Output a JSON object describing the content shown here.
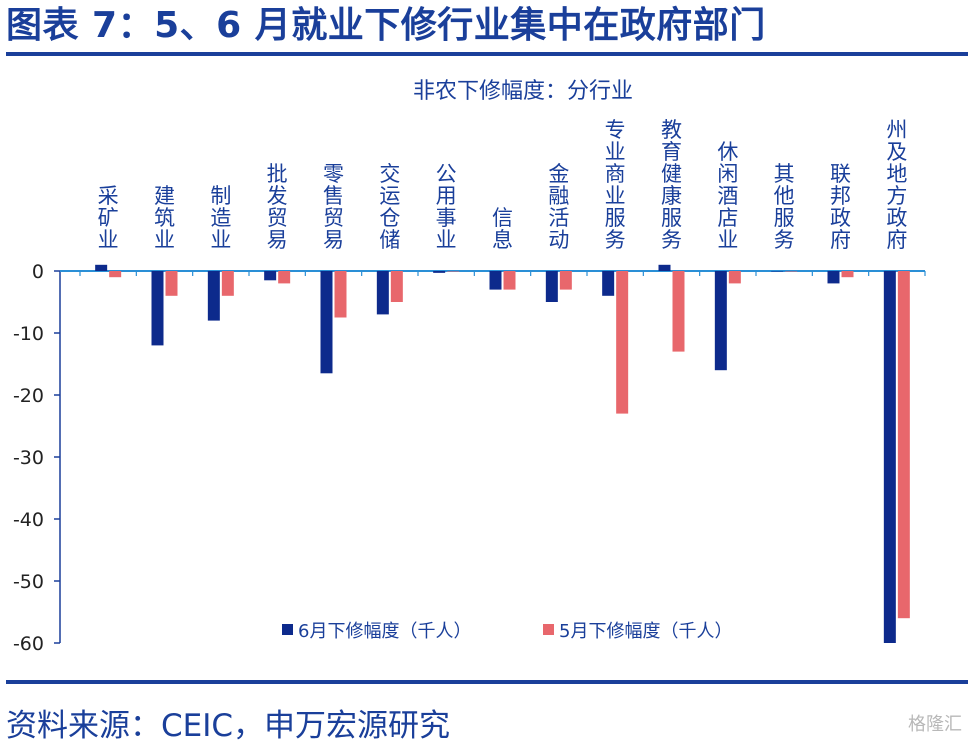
{
  "header": {
    "title": "图表 7：5、6 月就业下修行业集中在政府部门"
  },
  "footer": {
    "source": "资料来源：CEIC，申万宏源研究",
    "watermark": "格隆汇"
  },
  "chart_data": {
    "type": "bar",
    "title": "非农下修幅度：分行业",
    "xlabel": "",
    "ylabel": "",
    "ylim": [
      -60,
      0
    ],
    "yticks": [
      0,
      -10,
      -20,
      -30,
      -40,
      -50,
      -60
    ],
    "grid": false,
    "legend_position": "bottom-center",
    "categories": [
      "采矿业",
      "建筑业",
      "制造业",
      "批发贸易",
      "零售贸易",
      "交运仓储",
      "公用事业",
      "信息",
      "金融活动",
      "专业商业服务",
      "教育健康服务",
      "休闲酒店业",
      "其他服务",
      "联邦政府",
      "州及地方政府"
    ],
    "series": [
      {
        "name": "6月下修幅度（千人）",
        "color": "#0d2a8c",
        "values": [
          1,
          -12,
          -8,
          -1.5,
          -16.5,
          -7,
          -0.3,
          -3,
          -5,
          -4,
          1,
          -16,
          0,
          -2,
          -60
        ]
      },
      {
        "name": "5月下修幅度（千人）",
        "color": "#e8676c",
        "values": [
          -1,
          -4,
          -4,
          -2,
          -7.5,
          -5,
          0,
          -3,
          -3,
          -23,
          -13,
          -2,
          0,
          -1,
          -56
        ]
      }
    ]
  }
}
